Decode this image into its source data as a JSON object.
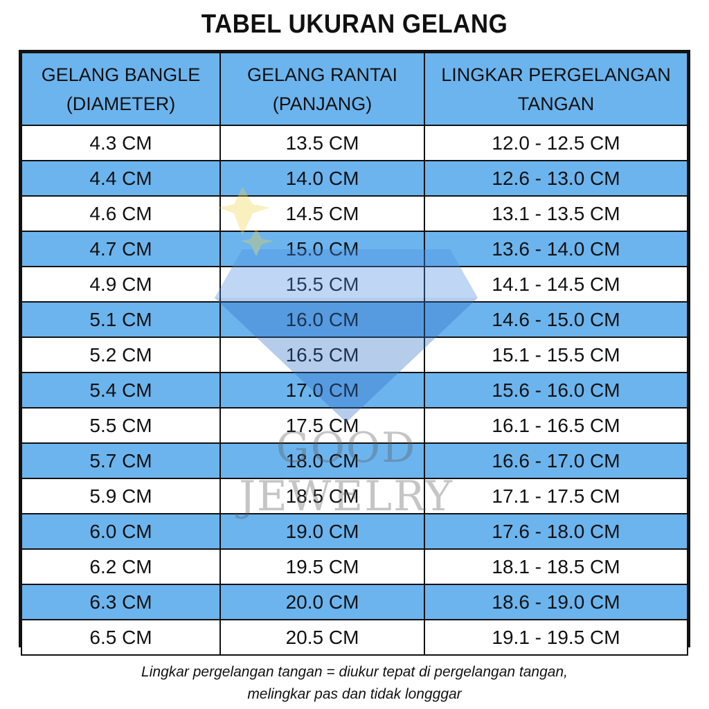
{
  "title": "TABEL UKURAN GELANG",
  "columns": [
    {
      "line1": "GELANG BANGLE",
      "line2": "(DIAMETER)"
    },
    {
      "line1": "GELANG RANTAI",
      "line2": "(PANJANG)"
    },
    {
      "line1": "LINGKAR PERGELANGAN",
      "line2": "TANGAN"
    }
  ],
  "rows": [
    [
      "4.3 CM",
      "13.5 CM",
      "12.0 - 12.5 CM"
    ],
    [
      "4.4 CM",
      "14.0 CM",
      "12.6 - 13.0 CM"
    ],
    [
      "4.6 CM",
      "14.5 CM",
      "13.1 - 13.5 CM"
    ],
    [
      "4.7 CM",
      "15.0 CM",
      "13.6 - 14.0 CM"
    ],
    [
      "4.9 CM",
      "15.5 CM",
      "14.1 - 14.5 CM"
    ],
    [
      "5.1 CM",
      "16.0 CM",
      "14.6 - 15.0 CM"
    ],
    [
      "5.2 CM",
      "16.5 CM",
      "15.1 - 15.5 CM"
    ],
    [
      "5.4 CM",
      "17.0 CM",
      "15.6 - 16.0 CM"
    ],
    [
      "5.5 CM",
      "17.5 CM",
      "16.1 - 16.5 CM"
    ],
    [
      "5.7 CM",
      "18.0 CM",
      "16.6 - 17.0 CM"
    ],
    [
      "5.9 CM",
      "18.5 CM",
      "17.1 - 17.5 CM"
    ],
    [
      "6.0 CM",
      "19.0 CM",
      "17.6 - 18.0 CM"
    ],
    [
      "6.2 CM",
      "19.5 CM",
      "18.1 - 18.5 CM"
    ],
    [
      "6.3 CM",
      "20.0 CM",
      "18.6 - 19.0 CM"
    ],
    [
      "6.5 CM",
      "20.5 CM",
      "19.1 - 19.5 CM"
    ]
  ],
  "watermark": "GOOD JEWELRY",
  "note": {
    "line1": "Lingkar pergelangan tangan = diukur tepat di pergelangan tangan,",
    "line2": "melingkar pas dan tidak longggar"
  },
  "colors": {
    "header_bg": "#6cb4ee",
    "stripe_bg": "#6cb4ee",
    "border": "#111111"
  }
}
